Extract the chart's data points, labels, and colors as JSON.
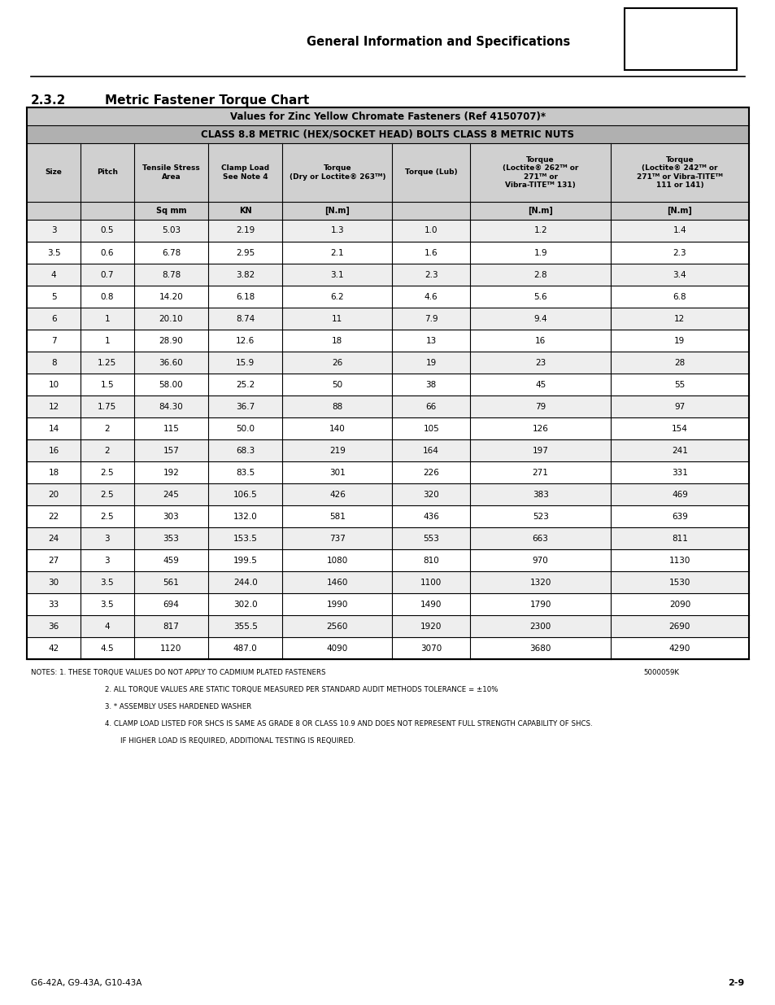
{
  "page_title": "General Information and Specifications",
  "section_title": "2.3.2",
  "section_title2": "Metric Fastener Torque Chart",
  "table_title1": "Values for Zinc Yellow Chromate Fasteners (Ref 4150707)*",
  "table_title2": "CLASS 8.8 METRIC (HEX/SOCKET HEAD) BOLTS CLASS 8 METRIC NUTS",
  "col_units": [
    "",
    "",
    "Sq mm",
    "KN",
    "[N.m]",
    "",
    "[N.m]",
    "[N.m]"
  ],
  "rows": [
    [
      "3",
      "0.5",
      "5.03",
      "2.19",
      "1.3",
      "1.0",
      "1.2",
      "1.4"
    ],
    [
      "3.5",
      "0.6",
      "6.78",
      "2.95",
      "2.1",
      "1.6",
      "1.9",
      "2.3"
    ],
    [
      "4",
      "0.7",
      "8.78",
      "3.82",
      "3.1",
      "2.3",
      "2.8",
      "3.4"
    ],
    [
      "5",
      "0.8",
      "14.20",
      "6.18",
      "6.2",
      "4.6",
      "5.6",
      "6.8"
    ],
    [
      "6",
      "1",
      "20.10",
      "8.74",
      "11",
      "7.9",
      "9.4",
      "12"
    ],
    [
      "7",
      "1",
      "28.90",
      "12.6",
      "18",
      "13",
      "16",
      "19"
    ],
    [
      "8",
      "1.25",
      "36.60",
      "15.9",
      "26",
      "19",
      "23",
      "28"
    ],
    [
      "10",
      "1.5",
      "58.00",
      "25.2",
      "50",
      "38",
      "45",
      "55"
    ],
    [
      "12",
      "1.75",
      "84.30",
      "36.7",
      "88",
      "66",
      "79",
      "97"
    ],
    [
      "14",
      "2",
      "115",
      "50.0",
      "140",
      "105",
      "126",
      "154"
    ],
    [
      "16",
      "2",
      "157",
      "68.3",
      "219",
      "164",
      "197",
      "241"
    ],
    [
      "18",
      "2.5",
      "192",
      "83.5",
      "301",
      "226",
      "271",
      "331"
    ],
    [
      "20",
      "2.5",
      "245",
      "106.5",
      "426",
      "320",
      "383",
      "469"
    ],
    [
      "22",
      "2.5",
      "303",
      "132.0",
      "581",
      "436",
      "523",
      "639"
    ],
    [
      "24",
      "3",
      "353",
      "153.5",
      "737",
      "553",
      "663",
      "811"
    ],
    [
      "27",
      "3",
      "459",
      "199.5",
      "1080",
      "810",
      "970",
      "1130"
    ],
    [
      "30",
      "3.5",
      "561",
      "244.0",
      "1460",
      "1100",
      "1320",
      "1530"
    ],
    [
      "33",
      "3.5",
      "694",
      "302.0",
      "1990",
      "1490",
      "1790",
      "2090"
    ],
    [
      "36",
      "4",
      "817",
      "355.5",
      "2560",
      "1920",
      "2300",
      "2690"
    ],
    [
      "42",
      "4.5",
      "1120",
      "487.0",
      "4090",
      "3070",
      "3680",
      "4290"
    ]
  ],
  "ref_number": "5000059K",
  "footer_left": "G6-42A, G9-43A, G10-43A",
  "footer_right": "2-9"
}
